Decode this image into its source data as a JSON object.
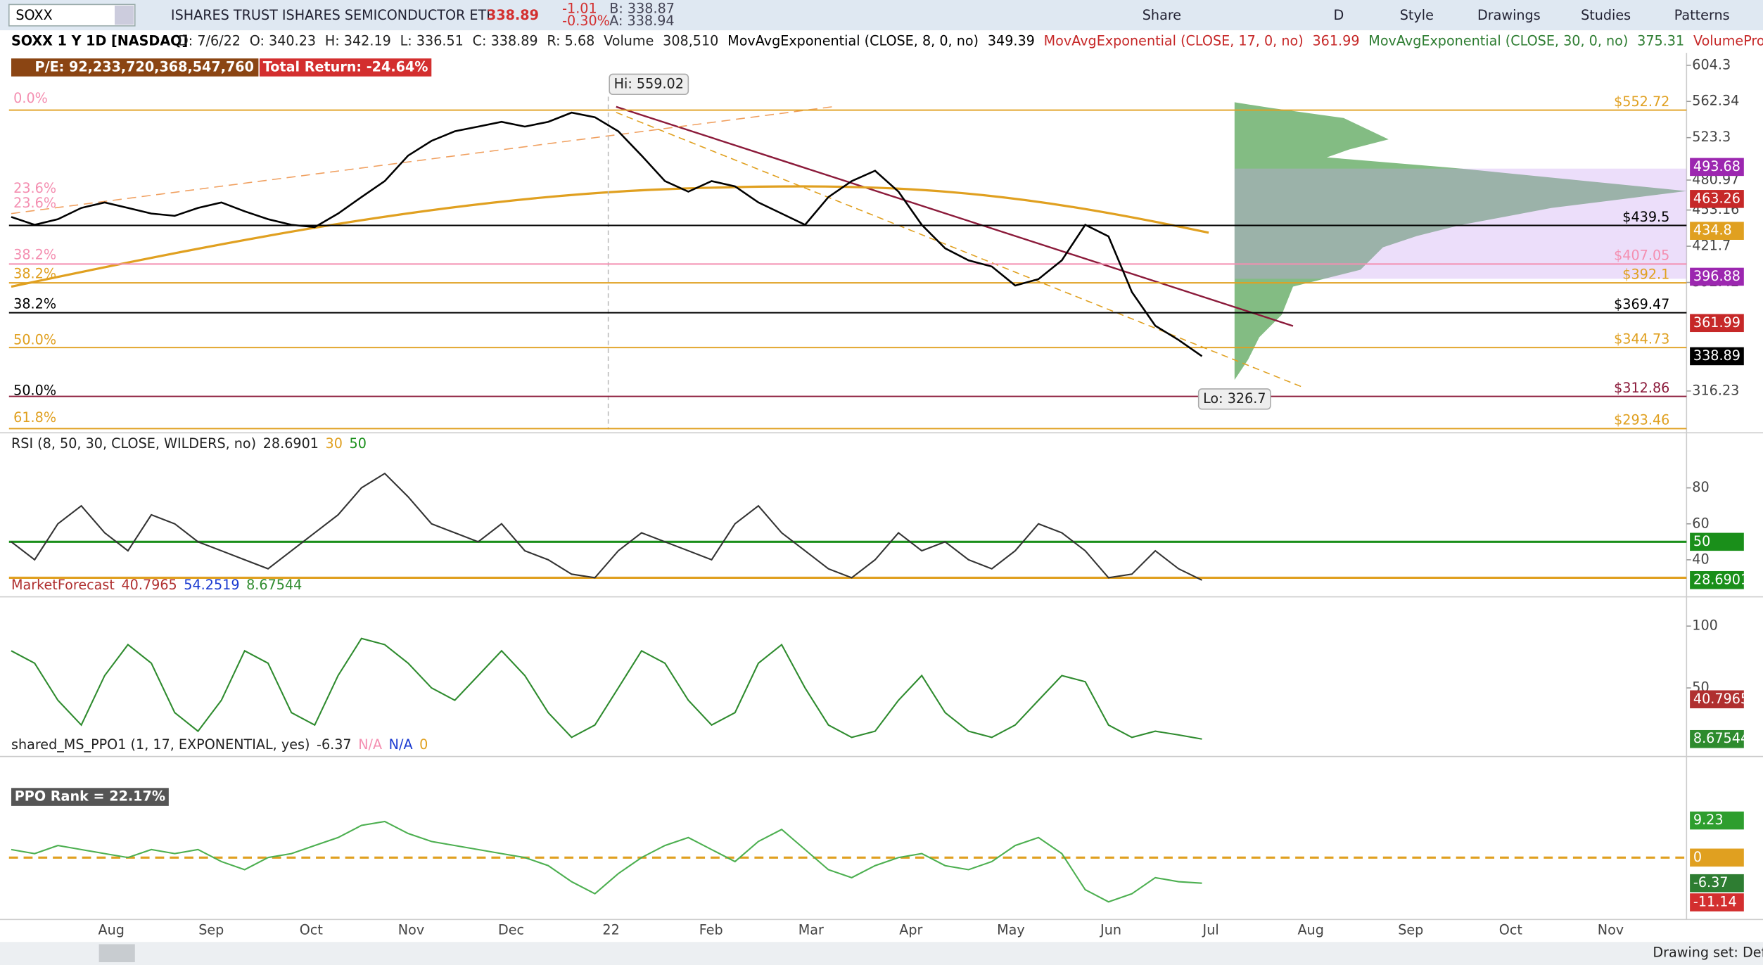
{
  "toolbar": {
    "symbol": "SOXX",
    "description": "ISHARES TRUST ISHARES SEMICONDUCTOR ETF",
    "last": "338.89",
    "change": "-1.01",
    "change_pct": "-0.30%",
    "bid": "B: 338.87",
    "ask": "A: 338.94",
    "buttons": [
      "Share",
      "D",
      "Style",
      "Drawings",
      "Studies",
      "Patterns"
    ]
  },
  "header": {
    "symbol_line": "SOXX 1 Y 1D [NASDAQ]",
    "fields": [
      "D: 7/6/22",
      "O: 340.23",
      "H: 342.19",
      "L: 336.51",
      "C: 338.89",
      "R: 5.68",
      "Volume",
      "308,510"
    ],
    "studies": [
      {
        "label": "MovAvgExponential (CLOSE, 8, 0, no)",
        "value": "349.39",
        "color": "#000000"
      },
      {
        "label": "MovAvgExponential (CLOSE, 17, 0, no)",
        "value": "361.99",
        "color": "#c62828"
      },
      {
        "label": "MovAvgExponential (CLOSE, 30, 0, no)",
        "value": "375.31",
        "color": "#2e7d32"
      }
    ],
    "volume_profile": "VolumeProfile ..."
  },
  "pe": "P/E: 92,233,720,368,547,760",
  "total_return": "Total Return: -24.64%",
  "months": [
    "Aug",
    "Sep",
    "Oct",
    "Nov",
    "Dec",
    "22",
    "Feb",
    "Mar",
    "Apr",
    "May",
    "Jun",
    "Jul",
    "Aug",
    "Sep",
    "Oct",
    "Nov"
  ],
  "fib_labels": [
    "0.0%",
    "23.6%",
    "23.6%",
    "38.2%",
    "38.2%",
    "38.2%",
    "50.0%",
    "50.0%",
    "61.8%"
  ],
  "hi": "Hi: 559.02",
  "lo": "Lo: 326.7",
  "drawing_set": "Drawing set: Default",
  "chart_data": [
    {
      "type": "line",
      "log_scale": true,
      "ylim": [
        293,
        619.4
      ],
      "yticks": [
        604.3,
        562.34,
        523.3,
        480.97,
        453.16,
        421.7,
        392.42,
        316.23
      ],
      "series": [
        {
          "name": "Close",
          "color": "#000000",
          "values": [
            447,
            440,
            445,
            455,
            460,
            455,
            450,
            448,
            455,
            460,
            452,
            445,
            440,
            438,
            450,
            465,
            480,
            505,
            520,
            530,
            535,
            540,
            535,
            540,
            550,
            545,
            530,
            505,
            480,
            470,
            480,
            475,
            460,
            450,
            440,
            465,
            480,
            490,
            470,
            440,
            420,
            410,
            405,
            390,
            395,
            410,
            440,
            430,
            385,
            360,
            350,
            338.89
          ]
        }
      ],
      "levels": [
        {
          "value": 552.72,
          "label": "$552.72",
          "color": "#e0a020"
        },
        {
          "value": 439.5,
          "label": "$439.5",
          "color": "#000000"
        },
        {
          "value": 407.05,
          "label": "$407.05",
          "color": "#f48fb1"
        },
        {
          "value": 392.1,
          "label": "$392.1",
          "color": "#e0a020"
        },
        {
          "value": 369.47,
          "label": "$369.47",
          "color": "#000000"
        },
        {
          "value": 344.73,
          "label": "$344.73",
          "color": "#e0a020"
        },
        {
          "value": 312.86,
          "label": "$312.86",
          "color": "#8b1a3a"
        },
        {
          "value": 293.46,
          "label": "$293.46",
          "color": "#e0a020"
        }
      ],
      "badges": [
        {
          "value": 493.68,
          "color": "#9c27b0"
        },
        {
          "value": 463.26,
          "color": "#c62828"
        },
        {
          "value": 434.8,
          "color": "#e0a020"
        },
        {
          "value": 396.88,
          "color": "#9c27b0"
        },
        {
          "value": 361.99,
          "color": "#c62828"
        },
        {
          "value": 338.89,
          "color": "#000000"
        }
      ]
    },
    {
      "type": "line",
      "title": "RSI (8, 50, 30, CLOSE, WILDERS, no)",
      "fields": [
        "28.6901",
        "30",
        "50"
      ],
      "ylim": [
        21.25,
        96.9
      ],
      "yticks": [
        40,
        60,
        80
      ],
      "series": [
        {
          "name": "RSI",
          "color": "#333333",
          "values": [
            50,
            40,
            60,
            70,
            55,
            45,
            65,
            60,
            50,
            45,
            40,
            35,
            45,
            55,
            65,
            80,
            88,
            75,
            60,
            55,
            50,
            60,
            45,
            40,
            32,
            30,
            45,
            55,
            50,
            45,
            40,
            60,
            70,
            55,
            45,
            35,
            30,
            40,
            55,
            45,
            50,
            40,
            35,
            45,
            60,
            55,
            45,
            30,
            32,
            45,
            35,
            28.6901
          ]
        }
      ],
      "levels": [
        {
          "value": 50,
          "color": "#1a8f1a"
        },
        {
          "value": 30,
          "color": "#e0a020"
        }
      ],
      "badges": [
        {
          "value": 50,
          "color": "#1a8f1a"
        },
        {
          "value": 28.6901,
          "color": "#1a8f1a"
        }
      ]
    },
    {
      "type": "line",
      "title": "MarketForecast",
      "fields": [
        "40.7965",
        "54.2519",
        "8.67544"
      ],
      "ylim": [
        -2.7,
        121.8
      ],
      "yticks": [
        50,
        100
      ],
      "series": [
        {
          "name": "Intermediate",
          "color": "#2e8b2e",
          "values": [
            80,
            70,
            40,
            20,
            60,
            85,
            70,
            30,
            15,
            40,
            80,
            70,
            30,
            20,
            60,
            90,
            85,
            70,
            50,
            40,
            60,
            80,
            60,
            30,
            10,
            20,
            50,
            80,
            70,
            40,
            20,
            30,
            70,
            85,
            50,
            20,
            10,
            15,
            40,
            60,
            30,
            15,
            10,
            20,
            40,
            60,
            55,
            20,
            10,
            15,
            12,
            8.67544
          ]
        }
      ],
      "levels": [],
      "badges": [
        {
          "value": 40.7965,
          "color": "#b03030"
        },
        {
          "value": 8.67544,
          "color": "#2e8b2e"
        }
      ]
    },
    {
      "type": "line",
      "title": "shared_MS_PPO1 (1, 17, EXPONENTIAL, yes)",
      "fields": [
        "-6.37",
        "N/A",
        "N/A",
        "0"
      ],
      "rank": "PPO Rank = 22.17%",
      "ylim": [
        -15.4,
        24.6
      ],
      "yticks": [],
      "series": [
        {
          "name": "PPO",
          "color": "#4caf50",
          "values": [
            2,
            1,
            3,
            2,
            1,
            0,
            2,
            1,
            2,
            -1,
            -3,
            0,
            1,
            3,
            5,
            8,
            9,
            6,
            4,
            3,
            2,
            1,
            0,
            -2,
            -6,
            -9,
            -4,
            0,
            3,
            5,
            2,
            -1,
            4,
            7,
            2,
            -3,
            -5,
            -2,
            0,
            1,
            -2,
            -3,
            -1,
            3,
            5,
            1,
            -8,
            -11,
            -9,
            -5,
            -6,
            -6.37
          ]
        }
      ],
      "levels": [
        {
          "value": 0,
          "color": "#e0a020"
        }
      ],
      "badges": [
        {
          "value": 9.23,
          "color": "#2e9e2e"
        },
        {
          "value": 0,
          "color": "#e0a020"
        },
        {
          "value": -6.37,
          "color": "#2e7d32"
        },
        {
          "value": -11.14,
          "color": "#d32f2f"
        }
      ]
    }
  ]
}
